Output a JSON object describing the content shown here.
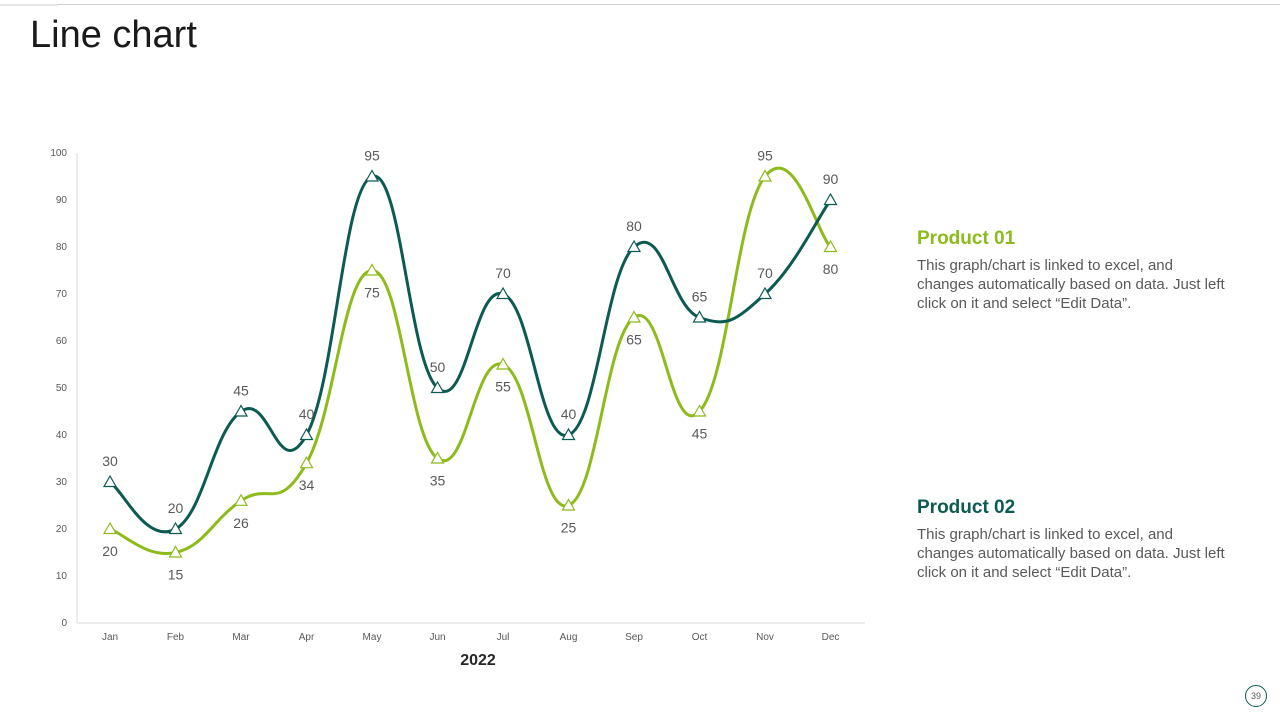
{
  "slide": {
    "title": "Line chart",
    "page_number": "39"
  },
  "legend": [
    {
      "name": "Product 01",
      "description": "This graph/chart is linked to excel, and changes automatically based on data. Just left click on it and select “Edit Data”.",
      "color": "#8dbb1c"
    },
    {
      "name": "Product 02",
      "description": "This graph/chart is linked to excel, and changes automatically based on data. Just left click on it and select “Edit Data”.",
      "color": "#0c5b53"
    }
  ],
  "chart_data": {
    "type": "line",
    "title": "",
    "xlabel": "2022",
    "ylabel": "",
    "categories": [
      "Jan",
      "Feb",
      "Mar",
      "Apr",
      "May",
      "Jun",
      "Jul",
      "Aug",
      "Sep",
      "Oct",
      "Nov",
      "Dec"
    ],
    "ylim": [
      0,
      100
    ],
    "yticks": [
      0,
      10,
      20,
      30,
      40,
      50,
      60,
      70,
      80,
      90,
      100
    ],
    "grid": false,
    "marker": "triangle",
    "series": [
      {
        "name": "Product 01",
        "color": "#8dbb1c",
        "values": [
          20,
          15,
          26,
          34,
          75,
          35,
          55,
          25,
          65,
          45,
          95,
          80
        ],
        "label_positions": [
          "below",
          "below",
          "below",
          "below",
          "below",
          "below",
          "below",
          "below",
          "below",
          "below",
          "above",
          "below"
        ]
      },
      {
        "name": "Product 02",
        "color": "#0c5b53",
        "values": [
          30,
          20,
          45,
          40,
          95,
          50,
          70,
          40,
          80,
          65,
          70,
          90
        ],
        "label_positions": [
          "above",
          "above",
          "above",
          "above",
          "above",
          "above",
          "above",
          "above",
          "above",
          "above",
          "above",
          "above"
        ]
      }
    ]
  }
}
